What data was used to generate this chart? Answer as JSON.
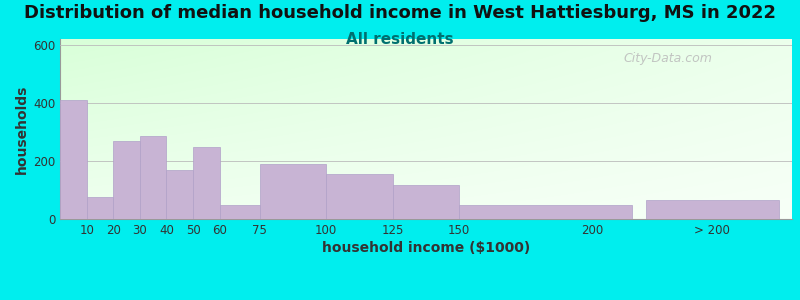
{
  "title": "Distribution of median household income in West Hattiesburg, MS in 2022",
  "subtitle": "All residents",
  "xlabel": "household income ($1000)",
  "ylabel": "households",
  "background_outer": "#00EEEE",
  "bar_color": "#C8B4D4",
  "bar_edge_color": "#B0A0C8",
  "categories": [
    "10",
    "20",
    "30",
    "40",
    "50",
    "60",
    "75",
    "100",
    "125",
    "150",
    "200",
    "> 200"
  ],
  "values": [
    410,
    75,
    268,
    285,
    170,
    248,
    47,
    188,
    155,
    118,
    48,
    65
  ],
  "ylim": [
    0,
    620
  ],
  "yticks": [
    0,
    200,
    400,
    600
  ],
  "title_fontsize": 13,
  "subtitle_fontsize": 11,
  "axis_label_fontsize": 10,
  "tick_fontsize": 8.5,
  "watermark_text": "City-Data.com",
  "plot_bg_top_left": "#D8F0D8",
  "plot_bg_bottom_right": "#F8FFF8",
  "grid_color": "#BBBBBB",
  "title_color": "#111111",
  "subtitle_color": "#007070",
  "ylabel_color": "#333333",
  "xlabel_color": "#333333"
}
